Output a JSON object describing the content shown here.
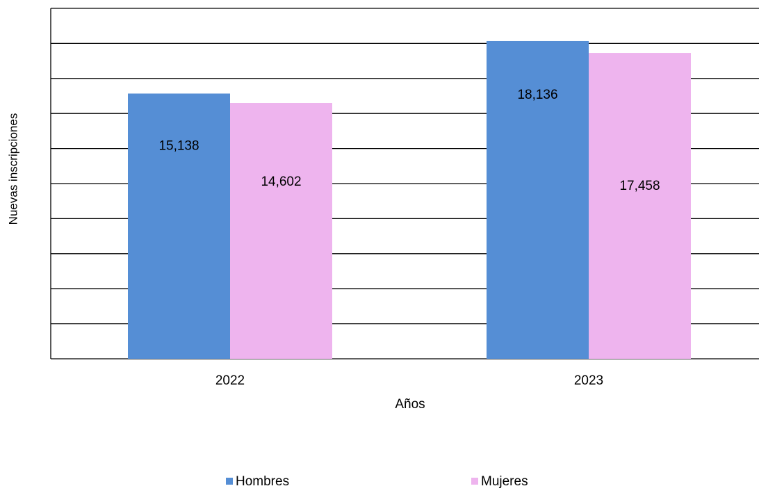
{
  "chart_data": {
    "type": "bar",
    "x_label": "Años",
    "y_label": "Nuevas inscripciones",
    "categories": [
      "2022",
      "2023"
    ],
    "series": [
      {
        "name": "Hombres",
        "color": "#558ed5",
        "values": [
          15138,
          18136
        ],
        "value_labels": [
          "15,138",
          "18,136"
        ]
      },
      {
        "name": "Mujeres",
        "color": "#eeb4ee",
        "values": [
          14602,
          17458
        ],
        "value_labels": [
          "14,602",
          "17,458"
        ]
      }
    ],
    "ylim": [
      0,
      20000
    ],
    "yticks": [
      0,
      2000,
      4000,
      6000,
      8000,
      10000,
      12000,
      14000,
      16000,
      18000,
      20000
    ],
    "grid": true
  }
}
